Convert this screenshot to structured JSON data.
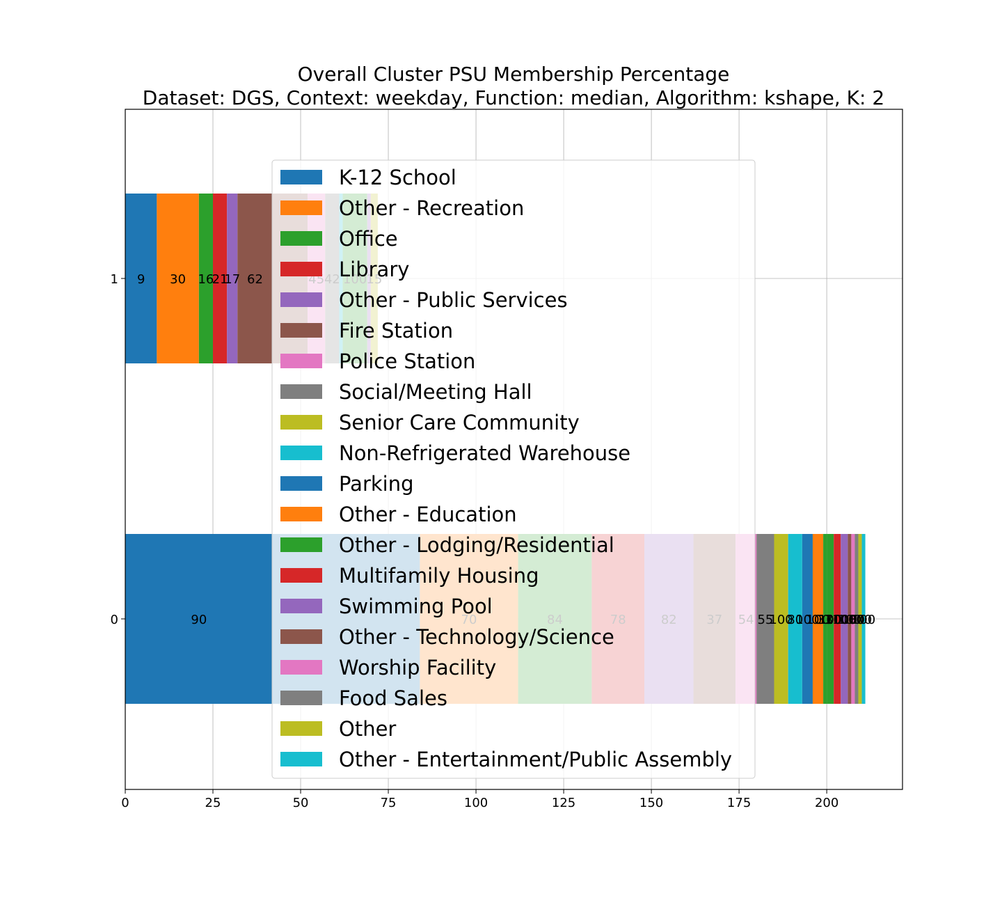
{
  "chart_data": {
    "type": "bar",
    "orientation": "horizontal",
    "stacked": true,
    "title_line1": "Overall Cluster  PSU Membership Percentage",
    "title_line2": "Dataset: DGS, Context: weekday, Function: median, Algorithm: kshape, K: 2",
    "xlabel": "",
    "ylabel": "",
    "xlim": [
      0,
      221.6
    ],
    "x_ticks": [
      "0",
      "25",
      "50",
      "75",
      "100",
      "125",
      "150",
      "175",
      "200"
    ],
    "categories": [
      "0",
      "1"
    ],
    "grid": true,
    "legend_position": "center",
    "legend": [
      {
        "name": "K-12 School",
        "color": "#1f77b4"
      },
      {
        "name": "Other - Recreation",
        "color": "#ff7f0e"
      },
      {
        "name": "Office",
        "color": "#2ca02c"
      },
      {
        "name": "Library",
        "color": "#d62728"
      },
      {
        "name": "Other - Public Services",
        "color": "#9467bd"
      },
      {
        "name": "Fire Station",
        "color": "#8c564b"
      },
      {
        "name": "Police Station",
        "color": "#e377c2"
      },
      {
        "name": "Social/Meeting Hall",
        "color": "#7f7f7f"
      },
      {
        "name": "Senior Care Community",
        "color": "#bcbd22"
      },
      {
        "name": "Non-Refrigerated Warehouse",
        "color": "#17becf"
      },
      {
        "name": "Parking",
        "color": "#1f77b4"
      },
      {
        "name": "Other - Education",
        "color": "#ff7f0e"
      },
      {
        "name": "Other - Lodging/Residential",
        "color": "#2ca02c"
      },
      {
        "name": "Multifamily Housing",
        "color": "#d62728"
      },
      {
        "name": "Swimming Pool",
        "color": "#9467bd"
      },
      {
        "name": "Other - Technology/Science",
        "color": "#8c564b"
      },
      {
        "name": "Worship Facility",
        "color": "#e377c2"
      },
      {
        "name": "Food Sales",
        "color": "#7f7f7f"
      },
      {
        "name": "Other",
        "color": "#bcbd22"
      },
      {
        "name": "Other - Entertainment/Public Assembly",
        "color": "#17becf"
      }
    ],
    "bars": [
      {
        "category": "1",
        "segments": [
          {
            "value": 9,
            "label": "9",
            "color": "#1f77b4"
          },
          {
            "value": 12,
            "label": "30",
            "color": "#ff7f0e"
          },
          {
            "value": 4,
            "label": "16",
            "color": "#2ca02c"
          },
          {
            "value": 4,
            "label": "21",
            "color": "#d62728"
          },
          {
            "value": 3,
            "label": "17",
            "color": "#9467bd"
          },
          {
            "value": 10,
            "label": "62",
            "color": "#8c564b"
          },
          {
            "value": 10,
            "label": "",
            "color": "#8c564b"
          },
          {
            "value": 5,
            "label": "45",
            "color": "#e377c2"
          },
          {
            "value": 4,
            "label": "42",
            "color": "#7f7f7f"
          },
          {
            "value": 1,
            "label": "",
            "color": "#17becf"
          },
          {
            "value": 7,
            "label": "100",
            "color": "#2ca02c"
          },
          {
            "value": 1,
            "label": "",
            "color": "#9467bd"
          },
          {
            "value": 2,
            "label": "15",
            "color": "#bcbd22"
          }
        ]
      },
      {
        "category": "0",
        "segments": [
          {
            "value": 42,
            "label": "90",
            "color": "#1f77b4"
          },
          {
            "value": 42,
            "label": "",
            "color": "#1f77b4"
          },
          {
            "value": 28,
            "label": "70",
            "color": "#ff7f0e"
          },
          {
            "value": 21,
            "label": "84",
            "color": "#2ca02c"
          },
          {
            "value": 15,
            "label": "78",
            "color": "#d62728"
          },
          {
            "value": 14,
            "label": "82",
            "color": "#9467bd"
          },
          {
            "value": 12,
            "label": "37",
            "color": "#8c564b"
          },
          {
            "value": 6,
            "label": "54",
            "color": "#e377c2"
          },
          {
            "value": 5,
            "label": "55",
            "color": "#7f7f7f"
          },
          {
            "value": 4,
            "label": "100",
            "color": "#bcbd22"
          },
          {
            "value": 4,
            "label": "80",
            "color": "#17becf"
          },
          {
            "value": 3,
            "label": "100",
            "color": "#1f77b4"
          },
          {
            "value": 3,
            "label": "100",
            "color": "#ff7f0e"
          },
          {
            "value": 1,
            "label": "33",
            "color": "#2ca02c"
          },
          {
            "value": 2,
            "label": "100",
            "color": "#2ca02c"
          },
          {
            "value": 2,
            "label": "100",
            "color": "#d62728"
          },
          {
            "value": 2,
            "label": "100",
            "color": "#9467bd"
          },
          {
            "value": 1,
            "label": "100",
            "color": "#8c564b"
          },
          {
            "value": 1,
            "label": "100",
            "color": "#e377c2"
          },
          {
            "value": 1,
            "label": "80",
            "color": "#7f7f7f"
          },
          {
            "value": 1,
            "label": "100",
            "color": "#bcbd22"
          },
          {
            "value": 1,
            "label": "100",
            "color": "#17becf"
          }
        ]
      }
    ]
  }
}
